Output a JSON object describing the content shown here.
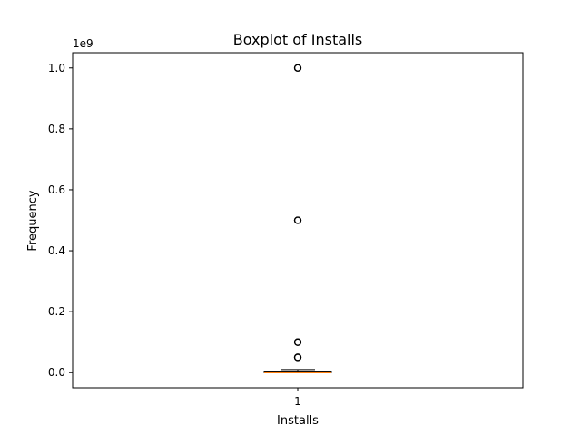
{
  "chart_data": {
    "type": "boxplot",
    "title": "Boxplot of Installs",
    "xlabel": "Installs",
    "ylabel": "Frequency",
    "offset_text": "1e9",
    "ylim": [
      -0.05,
      1.05
    ],
    "y_ticks": [
      0.0,
      0.2,
      0.4,
      0.6,
      0.8,
      1.0
    ],
    "y_tick_labels": [
      "0.0",
      "0.2",
      "0.4",
      "0.6",
      "0.8",
      "1.0"
    ],
    "x_tick_labels": [
      "1"
    ],
    "box": {
      "q1": 0.0,
      "median": 0.0,
      "q3": 0.005,
      "whisker_low": 0.0,
      "whisker_high": 0.01
    },
    "outliers": [
      0.05,
      0.05,
      0.1,
      0.1,
      0.5,
      0.5,
      1.0,
      1.0
    ],
    "colors": {
      "median": "#ff7f0e",
      "box": "#000000"
    }
  }
}
